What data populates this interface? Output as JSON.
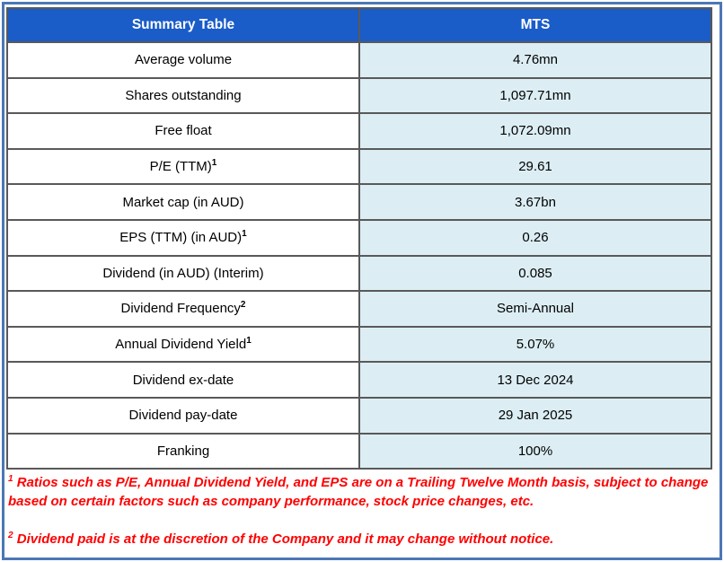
{
  "table": {
    "header": {
      "col1": "Summary Table",
      "col2": "MTS"
    },
    "rows": [
      {
        "label": "Average volume",
        "sup": "",
        "value": "4.76mn"
      },
      {
        "label": "Shares outstanding",
        "sup": "",
        "value": "1,097.71mn"
      },
      {
        "label": "Free float",
        "sup": "",
        "value": "1,072.09mn"
      },
      {
        "label": "P/E (TTM)",
        "sup": "1",
        "value": "29.61"
      },
      {
        "label": "Market cap (in AUD)",
        "sup": "",
        "value": "3.67bn"
      },
      {
        "label": "EPS (TTM) (in AUD)",
        "sup": "1",
        "value": "0.26"
      },
      {
        "label": "Dividend (in AUD) (Interim)",
        "sup": "",
        "value": "0.085"
      },
      {
        "label": "Dividend Frequency",
        "sup": "2",
        "value": "Semi-Annual"
      },
      {
        "label": "Annual Dividend Yield",
        "sup": "1",
        "value": "5.07%"
      },
      {
        "label": "Dividend ex-date",
        "sup": "",
        "value": "13 Dec 2024"
      },
      {
        "label": "Dividend pay-date",
        "sup": "",
        "value": "29 Jan 2025"
      },
      {
        "label": "Franking",
        "sup": "",
        "value": "100%"
      }
    ]
  },
  "footnotes": [
    {
      "sup": "1",
      "text": "Ratios such as P/E, Annual Dividend Yield, and EPS are on a Trailing Twelve Month basis, subject to change based on certain factors such as company performance, stock price changes, etc."
    },
    {
      "sup": "2",
      "text": "Dividend paid is at the discretion of the Company and it may change without notice."
    }
  ],
  "colors": {
    "header_bg": "#1A5CC8",
    "header_text": "#FFFFFF",
    "value_cell_bg": "#DCEEF4",
    "label_cell_bg": "#FFFFFF",
    "cell_border": "#595959",
    "outer_frame": "#4C77B6",
    "footnote_text": "#FF0000",
    "cell_text": "#000000"
  }
}
